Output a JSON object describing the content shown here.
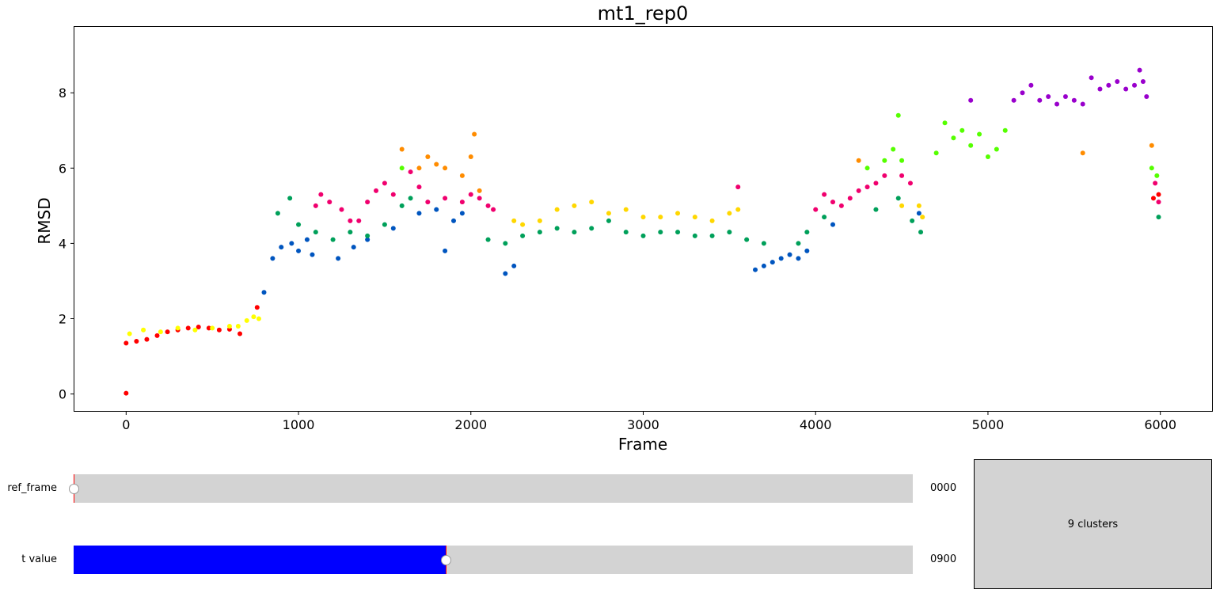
{
  "chart_data": {
    "type": "scatter",
    "title": "mt1_rep0",
    "xlabel": "Frame",
    "ylabel": "RMSD",
    "xlim": [
      -300,
      6300
    ],
    "ylim": [
      -0.45,
      9.75
    ],
    "xticks": [
      0,
      1000,
      2000,
      3000,
      4000,
      5000,
      6000
    ],
    "yticks": [
      0,
      2,
      4,
      6,
      8
    ],
    "grid": false,
    "frames_total": 6000,
    "colors": {
      "red": "#ff0000",
      "yellow": "#ffff00",
      "blue": "#0055bf",
      "green": "#00a05a",
      "magenta": "#f0006e",
      "orange": "#ff8c00",
      "gold": "#ffd700",
      "lime": "#55ff00",
      "purple": "#9900cc"
    },
    "series": [
      {
        "color": "red",
        "points": [
          [
            0,
            0.02
          ],
          [
            0,
            1.35
          ],
          [
            60,
            1.4
          ],
          [
            120,
            1.45
          ],
          [
            180,
            1.55
          ],
          [
            240,
            1.65
          ],
          [
            300,
            1.7
          ],
          [
            360,
            1.75
          ],
          [
            420,
            1.78
          ],
          [
            480,
            1.75
          ],
          [
            540,
            1.7
          ],
          [
            600,
            1.72
          ],
          [
            660,
            1.6
          ],
          [
            760,
            2.3
          ],
          [
            5960,
            5.2
          ],
          [
            5990,
            5.3
          ]
        ]
      },
      {
        "color": "yellow",
        "points": [
          [
            20,
            1.6
          ],
          [
            100,
            1.7
          ],
          [
            200,
            1.65
          ],
          [
            300,
            1.75
          ],
          [
            400,
            1.7
          ],
          [
            500,
            1.75
          ],
          [
            600,
            1.8
          ],
          [
            650,
            1.8
          ],
          [
            700,
            1.95
          ],
          [
            740,
            2.05
          ],
          [
            770,
            2.0
          ]
        ]
      },
      {
        "color": "blue",
        "points": [
          [
            800,
            2.7
          ],
          [
            850,
            3.6
          ],
          [
            900,
            3.9
          ],
          [
            960,
            4.0
          ],
          [
            1000,
            3.8
          ],
          [
            1050,
            4.1
          ],
          [
            1080,
            3.7
          ],
          [
            1230,
            3.6
          ],
          [
            1320,
            3.9
          ],
          [
            1400,
            4.1
          ],
          [
            1550,
            4.4
          ],
          [
            1700,
            4.8
          ],
          [
            1800,
            4.9
          ],
          [
            1850,
            3.8
          ],
          [
            1900,
            4.6
          ],
          [
            1950,
            4.8
          ],
          [
            2200,
            3.2
          ],
          [
            2250,
            3.4
          ],
          [
            3650,
            3.3
          ],
          [
            3700,
            3.4
          ],
          [
            3750,
            3.5
          ],
          [
            3800,
            3.6
          ],
          [
            3850,
            3.7
          ],
          [
            3900,
            3.6
          ],
          [
            3950,
            3.8
          ],
          [
            4100,
            4.5
          ],
          [
            4600,
            4.8
          ]
        ]
      },
      {
        "color": "green",
        "points": [
          [
            880,
            4.8
          ],
          [
            950,
            5.2
          ],
          [
            1000,
            4.5
          ],
          [
            1100,
            4.3
          ],
          [
            1200,
            4.1
          ],
          [
            1300,
            4.3
          ],
          [
            1400,
            4.2
          ],
          [
            1500,
            4.5
          ],
          [
            1600,
            5.0
          ],
          [
            1650,
            5.2
          ],
          [
            2100,
            4.1
          ],
          [
            2200,
            4.0
          ],
          [
            2300,
            4.2
          ],
          [
            2400,
            4.3
          ],
          [
            2500,
            4.4
          ],
          [
            2600,
            4.3
          ],
          [
            2700,
            4.4
          ],
          [
            2800,
            4.6
          ],
          [
            2900,
            4.3
          ],
          [
            3000,
            4.2
          ],
          [
            3100,
            4.3
          ],
          [
            3200,
            4.3
          ],
          [
            3300,
            4.2
          ],
          [
            3400,
            4.2
          ],
          [
            3500,
            4.3
          ],
          [
            3600,
            4.1
          ],
          [
            3700,
            4.0
          ],
          [
            3900,
            4.0
          ],
          [
            3950,
            4.3
          ],
          [
            4050,
            4.7
          ],
          [
            4350,
            4.9
          ],
          [
            4480,
            5.2
          ],
          [
            4560,
            4.6
          ],
          [
            4610,
            4.3
          ],
          [
            5990,
            4.7
          ]
        ]
      },
      {
        "color": "magenta",
        "points": [
          [
            1100,
            5.0
          ],
          [
            1130,
            5.3
          ],
          [
            1180,
            5.1
          ],
          [
            1250,
            4.9
          ],
          [
            1300,
            4.6
          ],
          [
            1350,
            4.6
          ],
          [
            1400,
            5.1
          ],
          [
            1450,
            5.4
          ],
          [
            1500,
            5.6
          ],
          [
            1550,
            5.3
          ],
          [
            1650,
            5.9
          ],
          [
            1700,
            5.5
          ],
          [
            1750,
            5.1
          ],
          [
            1850,
            5.2
          ],
          [
            1950,
            5.1
          ],
          [
            2000,
            5.3
          ],
          [
            2050,
            5.2
          ],
          [
            2100,
            5.0
          ],
          [
            2130,
            4.9
          ],
          [
            3550,
            5.5
          ],
          [
            4000,
            4.9
          ],
          [
            4050,
            5.3
          ],
          [
            4100,
            5.1
          ],
          [
            4150,
            5.0
          ],
          [
            4200,
            5.2
          ],
          [
            4250,
            5.4
          ],
          [
            4300,
            5.5
          ],
          [
            4350,
            5.6
          ],
          [
            4400,
            5.8
          ],
          [
            4500,
            5.8
          ],
          [
            4550,
            5.6
          ],
          [
            5970,
            5.6
          ],
          [
            5990,
            5.1
          ]
        ]
      },
      {
        "color": "orange",
        "points": [
          [
            1600,
            6.5
          ],
          [
            1700,
            6.0
          ],
          [
            1750,
            6.3
          ],
          [
            1800,
            6.1
          ],
          [
            1850,
            6.0
          ],
          [
            1950,
            5.8
          ],
          [
            2000,
            6.3
          ],
          [
            2020,
            6.9
          ],
          [
            2050,
            5.4
          ],
          [
            4250,
            6.2
          ],
          [
            5550,
            6.4
          ],
          [
            5950,
            6.6
          ]
        ]
      },
      {
        "color": "gold",
        "points": [
          [
            2250,
            4.6
          ],
          [
            2300,
            4.5
          ],
          [
            2400,
            4.6
          ],
          [
            2500,
            4.9
          ],
          [
            2600,
            5.0
          ],
          [
            2700,
            5.1
          ],
          [
            2800,
            4.8
          ],
          [
            2900,
            4.9
          ],
          [
            3000,
            4.7
          ],
          [
            3100,
            4.7
          ],
          [
            3200,
            4.8
          ],
          [
            3300,
            4.7
          ],
          [
            3400,
            4.6
          ],
          [
            3500,
            4.8
          ],
          [
            3550,
            4.9
          ],
          [
            4500,
            5.0
          ],
          [
            4600,
            5.0
          ],
          [
            4620,
            4.7
          ]
        ]
      },
      {
        "color": "lime",
        "points": [
          [
            1600,
            6.0
          ],
          [
            4300,
            6.0
          ],
          [
            4400,
            6.2
          ],
          [
            4450,
            6.5
          ],
          [
            4480,
            7.4
          ],
          [
            4500,
            6.2
          ],
          [
            4700,
            6.4
          ],
          [
            4750,
            7.2
          ],
          [
            4800,
            6.8
          ],
          [
            4850,
            7.0
          ],
          [
            4900,
            6.6
          ],
          [
            4950,
            6.9
          ],
          [
            5000,
            6.3
          ],
          [
            5050,
            6.5
          ],
          [
            5100,
            7.0
          ],
          [
            5950,
            6.0
          ],
          [
            5980,
            5.8
          ]
        ]
      },
      {
        "color": "purple",
        "points": [
          [
            4900,
            7.8
          ],
          [
            5150,
            7.8
          ],
          [
            5200,
            8.0
          ],
          [
            5250,
            8.2
          ],
          [
            5300,
            7.8
          ],
          [
            5350,
            7.9
          ],
          [
            5400,
            7.7
          ],
          [
            5450,
            7.9
          ],
          [
            5500,
            7.8
          ],
          [
            5550,
            7.7
          ],
          [
            5600,
            8.4
          ],
          [
            5650,
            8.1
          ],
          [
            5700,
            8.2
          ],
          [
            5750,
            8.3
          ],
          [
            5800,
            8.1
          ],
          [
            5850,
            8.2
          ],
          [
            5880,
            8.6
          ],
          [
            5900,
            8.3
          ],
          [
            5920,
            7.9
          ]
        ]
      }
    ]
  },
  "controls": {
    "ref_frame": {
      "label": "ref_frame",
      "value_text": "0000",
      "fraction": 0.0
    },
    "t_value": {
      "label": "t value",
      "value_text": "0900",
      "fraction": 0.443
    },
    "clusters_button": {
      "label": "9 clusters"
    }
  }
}
